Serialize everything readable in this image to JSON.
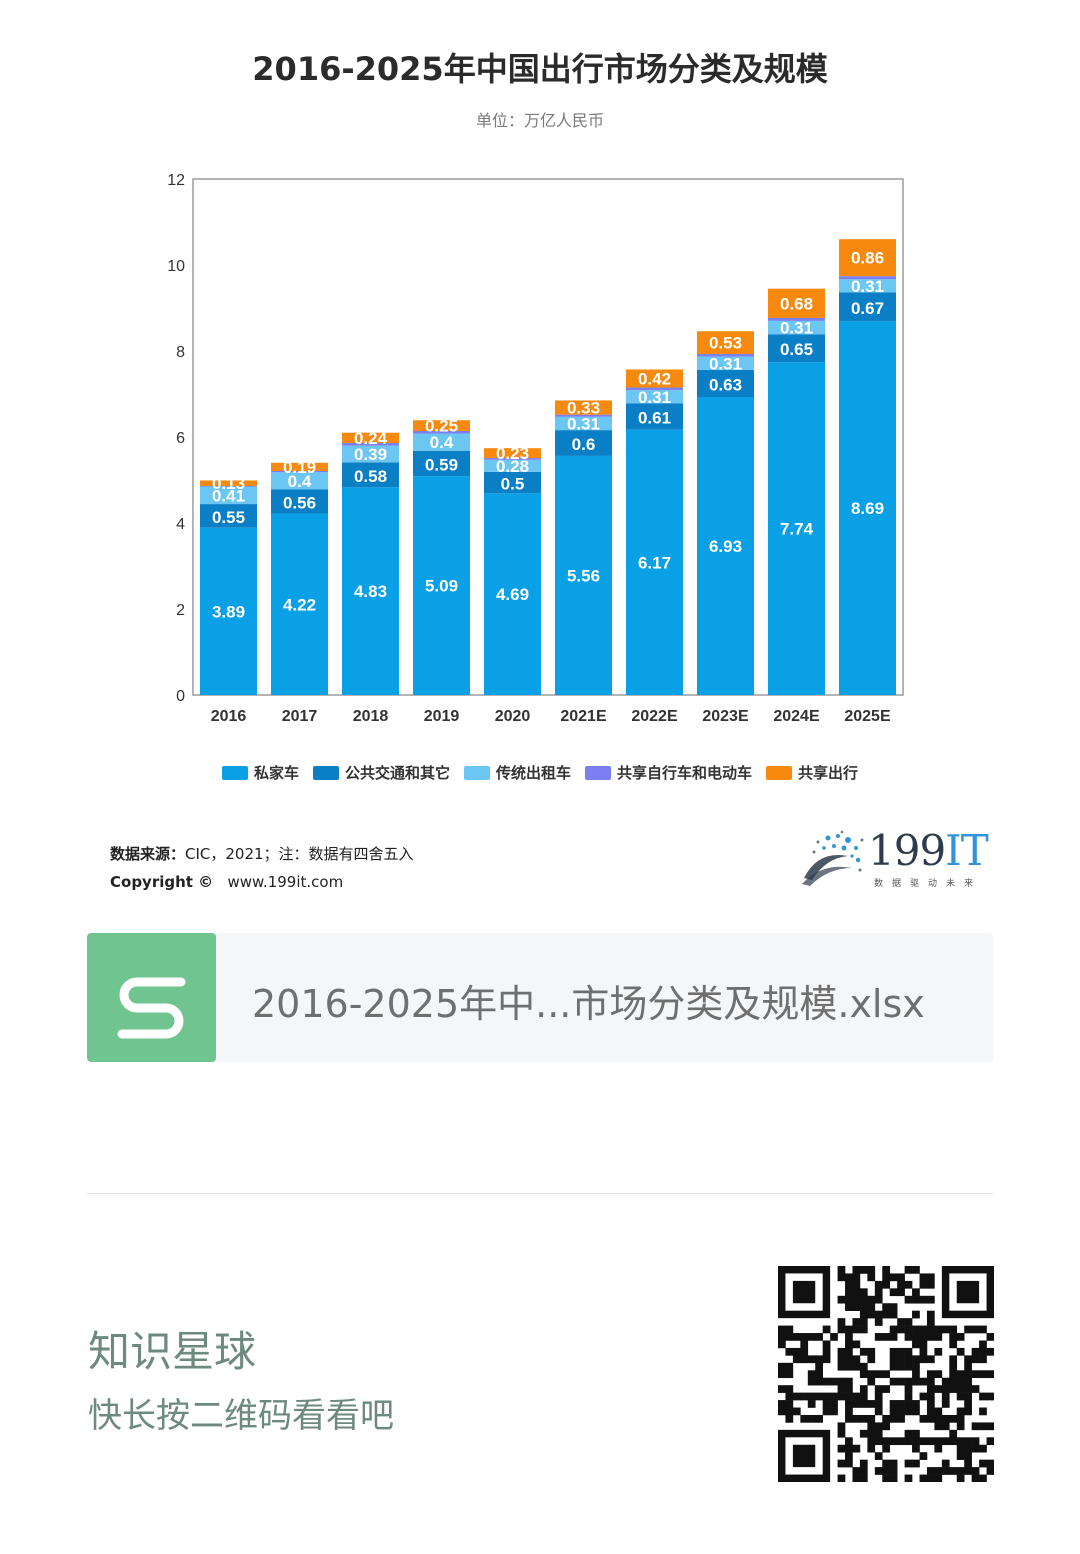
{
  "header": {
    "title": "2016-2025年中国出行市场分类及规模",
    "subtitle": "单位：万亿人民币"
  },
  "chart_data": {
    "type": "bar",
    "stacked": true,
    "title": "2016-2025年中国出行市场分类及规模",
    "subtitle": "单位：万亿人民币",
    "categories": [
      "2016",
      "2017",
      "2018",
      "2019",
      "2020",
      "2021E",
      "2022E",
      "2023E",
      "2024E",
      "2025E"
    ],
    "ylim": [
      0,
      12
    ],
    "yticks": [
      0,
      2,
      4,
      6,
      8,
      10,
      12
    ],
    "grid": false,
    "legend_position": "bottom",
    "series": [
      {
        "name": "私家车",
        "color": "#0aa0e6",
        "values": [
          3.89,
          4.22,
          4.83,
          5.09,
          4.69,
          5.56,
          6.17,
          6.93,
          7.74,
          8.69
        ]
      },
      {
        "name": "公共交通和其它",
        "color": "#0b7fc6",
        "values": [
          0.55,
          0.56,
          0.58,
          0.59,
          0.5,
          0.6,
          0.61,
          0.63,
          0.65,
          0.67
        ]
      },
      {
        "name": "传统出租车",
        "color": "#6cc6f2",
        "values": [
          0.41,
          0.4,
          0.39,
          0.4,
          0.28,
          0.31,
          0.31,
          0.31,
          0.31,
          0.31
        ]
      },
      {
        "name": "共享自行车和电动车",
        "color": "#7b7ff0",
        "values": [
          0.01,
          0.03,
          0.06,
          0.06,
          0.04,
          0.05,
          0.06,
          0.06,
          0.07,
          0.07
        ]
      },
      {
        "name": "共享出行",
        "color": "#f7890f",
        "values": [
          0.13,
          0.19,
          0.24,
          0.25,
          0.23,
          0.33,
          0.42,
          0.53,
          0.68,
          0.86
        ]
      }
    ]
  },
  "source": {
    "label": "数据来源：",
    "text": "CIC，2021；注：数据有四舍五入",
    "copyright": "Copyright ©",
    "url": "www.199it.com"
  },
  "logo": {
    "name_num": "199",
    "name_it": "IT",
    "tagline": "数据驱动未来"
  },
  "file": {
    "icon_letter": "S",
    "name": "2016-2025年中...市场分类及规模.xlsx",
    "icon_color": "#6fc48f"
  },
  "footer": {
    "title": "知识星球",
    "subtitle": "快长按二维码看看吧"
  }
}
